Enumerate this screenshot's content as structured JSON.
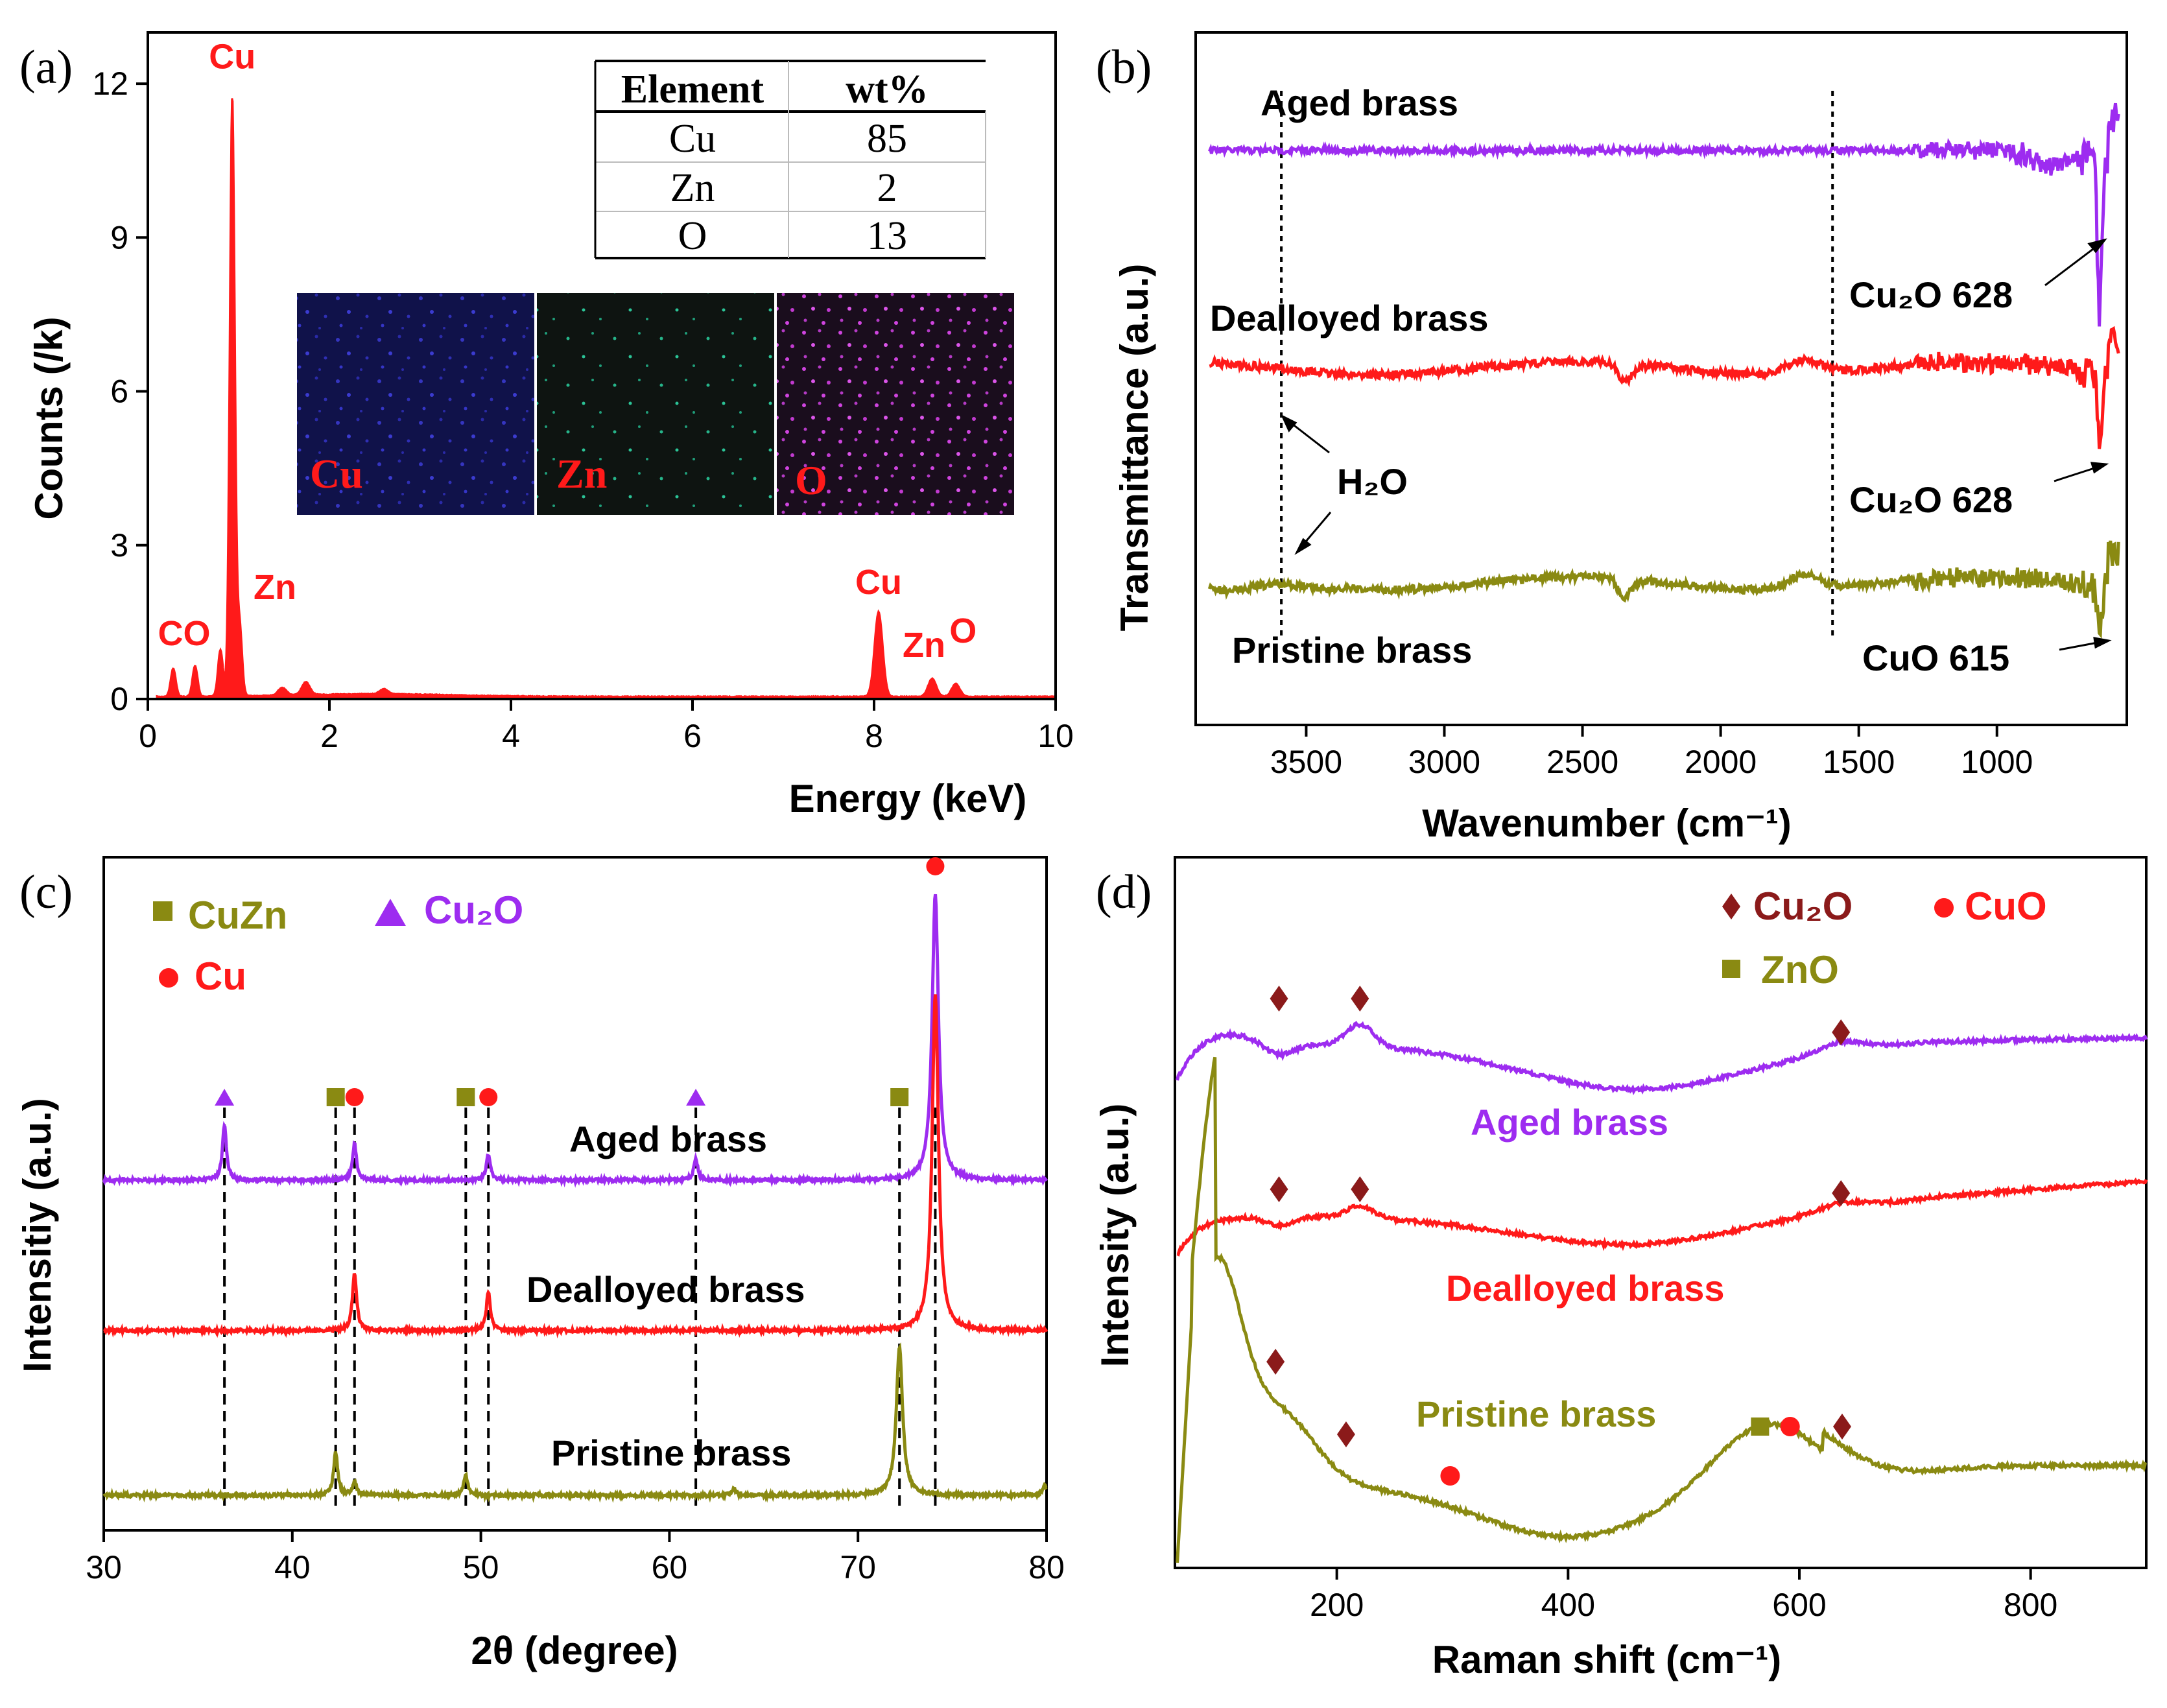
{
  "colors": {
    "purple": "#9d2cf0",
    "red": "#ff1a1a",
    "olive": "#8a8a12",
    "darkred": "#8b1a1a",
    "map_cu": "#1a1a7a",
    "map_zn": "#1f9e7a",
    "map_o": "#c23ad0"
  },
  "chart_data": [
    {
      "type": "area",
      "panel": "(a)",
      "xlabel": "Energy (keV)",
      "ylabel": "Counts (/k)",
      "xlim": [
        0,
        10
      ],
      "ylim": [
        0,
        13
      ],
      "xticks": [
        0,
        2,
        4,
        6,
        8,
        10
      ],
      "yticks": [
        0,
        3,
        6,
        9,
        12
      ],
      "peaks": [
        {
          "x": 0.28,
          "y": 0.55
        },
        {
          "x": 0.52,
          "y": 0.6
        },
        {
          "x": 0.8,
          "y": 0.9
        },
        {
          "x": 0.93,
          "y": 11.7
        },
        {
          "x": 1.01,
          "y": 1.4
        },
        {
          "x": 1.48,
          "y": 0.15
        },
        {
          "x": 1.74,
          "y": 0.25
        },
        {
          "x": 2.6,
          "y": 0.1
        },
        {
          "x": 8.05,
          "y": 1.65
        },
        {
          "x": 8.64,
          "y": 0.35
        },
        {
          "x": 8.9,
          "y": 0.25
        }
      ],
      "annotations": [
        {
          "text": "Cu",
          "x": 0.93,
          "y": 12.3
        },
        {
          "text": "CO",
          "x": 0.4,
          "y": 1.05
        },
        {
          "text": "Zn",
          "x": 1.4,
          "y": 1.95
        },
        {
          "text": "Cu",
          "x": 8.05,
          "y": 2.05
        },
        {
          "text": "Zn",
          "x": 8.55,
          "y": 0.82
        },
        {
          "text": "O",
          "x": 8.98,
          "y": 1.1
        }
      ],
      "table": {
        "headers": [
          "Element",
          "wt%"
        ],
        "rows": [
          [
            "Cu",
            "85"
          ],
          [
            "Zn",
            "2"
          ],
          [
            "O",
            "13"
          ]
        ]
      },
      "maps": [
        "Cu",
        "Zn",
        "O"
      ]
    },
    {
      "type": "line",
      "panel": "(b)",
      "xlabel": "Wavenumber (cm⁻¹)",
      "ylabel": "Transmittance (a.u.)",
      "xlim": [
        3900,
        530
      ],
      "xticks": [
        3500,
        3000,
        2500,
        2000,
        1500,
        1000
      ],
      "series": [
        {
          "name": "Aged brass",
          "color": "purple"
        },
        {
          "name": "Dealloyed brass",
          "color": "red"
        },
        {
          "name": "Pristine brass",
          "color": "olive"
        }
      ],
      "vlines": [
        3590,
        1595
      ],
      "annotations": [
        {
          "text": "Cu₂O 628"
        },
        {
          "text": "Cu₂O 628"
        },
        {
          "text": "CuO 615"
        },
        {
          "text": "H₂O"
        }
      ]
    },
    {
      "type": "line",
      "panel": "(c)",
      "xlabel": "2θ  (degree)",
      "ylabel": "Intensitiy (a.u.)",
      "xlim": [
        30,
        80
      ],
      "xticks": [
        30,
        40,
        50,
        60,
        70,
        80
      ],
      "series": [
        {
          "name": "Aged brass",
          "color": "purple",
          "peaks": [
            {
              "x": 36.4,
              "h": 0.42
            },
            {
              "x": 43.3,
              "h": 0.28
            },
            {
              "x": 50.4,
              "h": 0.2
            },
            {
              "x": 61.4,
              "h": 0.16
            },
            {
              "x": 74.1,
              "h": 2.2
            }
          ]
        },
        {
          "name": "Dealloyed brass",
          "color": "red",
          "peaks": [
            {
              "x": 43.3,
              "h": 0.45
            },
            {
              "x": 50.4,
              "h": 0.3
            },
            {
              "x": 74.1,
              "h": 2.6
            }
          ]
        },
        {
          "name": "Pristine brass",
          "color": "olive",
          "peaks": [
            {
              "x": 42.3,
              "h": 0.33
            },
            {
              "x": 43.3,
              "h": 0.1
            },
            {
              "x": 49.2,
              "h": 0.15
            },
            {
              "x": 63.4,
              "h": 0.05
            },
            {
              "x": 72.2,
              "h": 1.15
            },
            {
              "x": 79.9,
              "h": 0.08
            }
          ]
        }
      ],
      "vlines": [
        36.4,
        42.3,
        43.3,
        49.2,
        50.4,
        61.4,
        72.2,
        74.1
      ],
      "legend": [
        {
          "text": "CuZn",
          "marker": "square",
          "color": "olive"
        },
        {
          "text": "Cu₂O",
          "marker": "triangle",
          "color": "purple"
        },
        {
          "text": "Cu",
          "marker": "circle",
          "color": "red"
        }
      ],
      "markers": [
        {
          "marker": "triangle",
          "x": 36.4
        },
        {
          "marker": "square",
          "x": 42.3
        },
        {
          "marker": "circle",
          "x": 43.3
        },
        {
          "marker": "square",
          "x": 49.2
        },
        {
          "marker": "circle",
          "x": 50.4
        },
        {
          "marker": "triangle",
          "x": 61.4
        },
        {
          "marker": "square",
          "x": 72.2
        },
        {
          "marker": "circle",
          "x": 74.1
        }
      ]
    },
    {
      "type": "line",
      "panel": "(d)",
      "xlabel": "Raman shift (cm⁻¹)",
      "ylabel": "Intensity (a.u.)",
      "xlim": [
        60,
        900
      ],
      "xticks": [
        200,
        400,
        600,
        800
      ],
      "series": [
        {
          "name": "Aged  brass",
          "color": "purple"
        },
        {
          "name": "Dealloyed brass",
          "color": "red"
        },
        {
          "name": "Pristine brass",
          "color": "olive"
        }
      ],
      "legend": [
        {
          "text": "Cu₂O",
          "marker": "diamond",
          "color": "darkred"
        },
        {
          "text": "CuO",
          "marker": "circle",
          "color": "red"
        },
        {
          "text": "ZnO",
          "marker": "square",
          "color": "olive"
        }
      ],
      "markers": [
        {
          "marker": "diamond",
          "x": 150,
          "series": 0
        },
        {
          "marker": "diamond",
          "x": 220,
          "series": 0
        },
        {
          "marker": "diamond",
          "x": 636,
          "series": 0
        },
        {
          "marker": "diamond",
          "x": 150,
          "series": 1
        },
        {
          "marker": "diamond",
          "x": 220,
          "series": 1
        },
        {
          "marker": "diamond",
          "x": 636,
          "series": 1
        },
        {
          "marker": "diamond",
          "x": 147,
          "series": 2
        },
        {
          "marker": "diamond",
          "x": 208,
          "series": 2
        },
        {
          "marker": "circle",
          "x": 298,
          "series": 2
        },
        {
          "marker": "square",
          "x": 566,
          "series": 2
        },
        {
          "marker": "circle",
          "x": 592,
          "series": 2
        },
        {
          "marker": "diamond",
          "x": 637,
          "series": 2
        }
      ]
    }
  ]
}
